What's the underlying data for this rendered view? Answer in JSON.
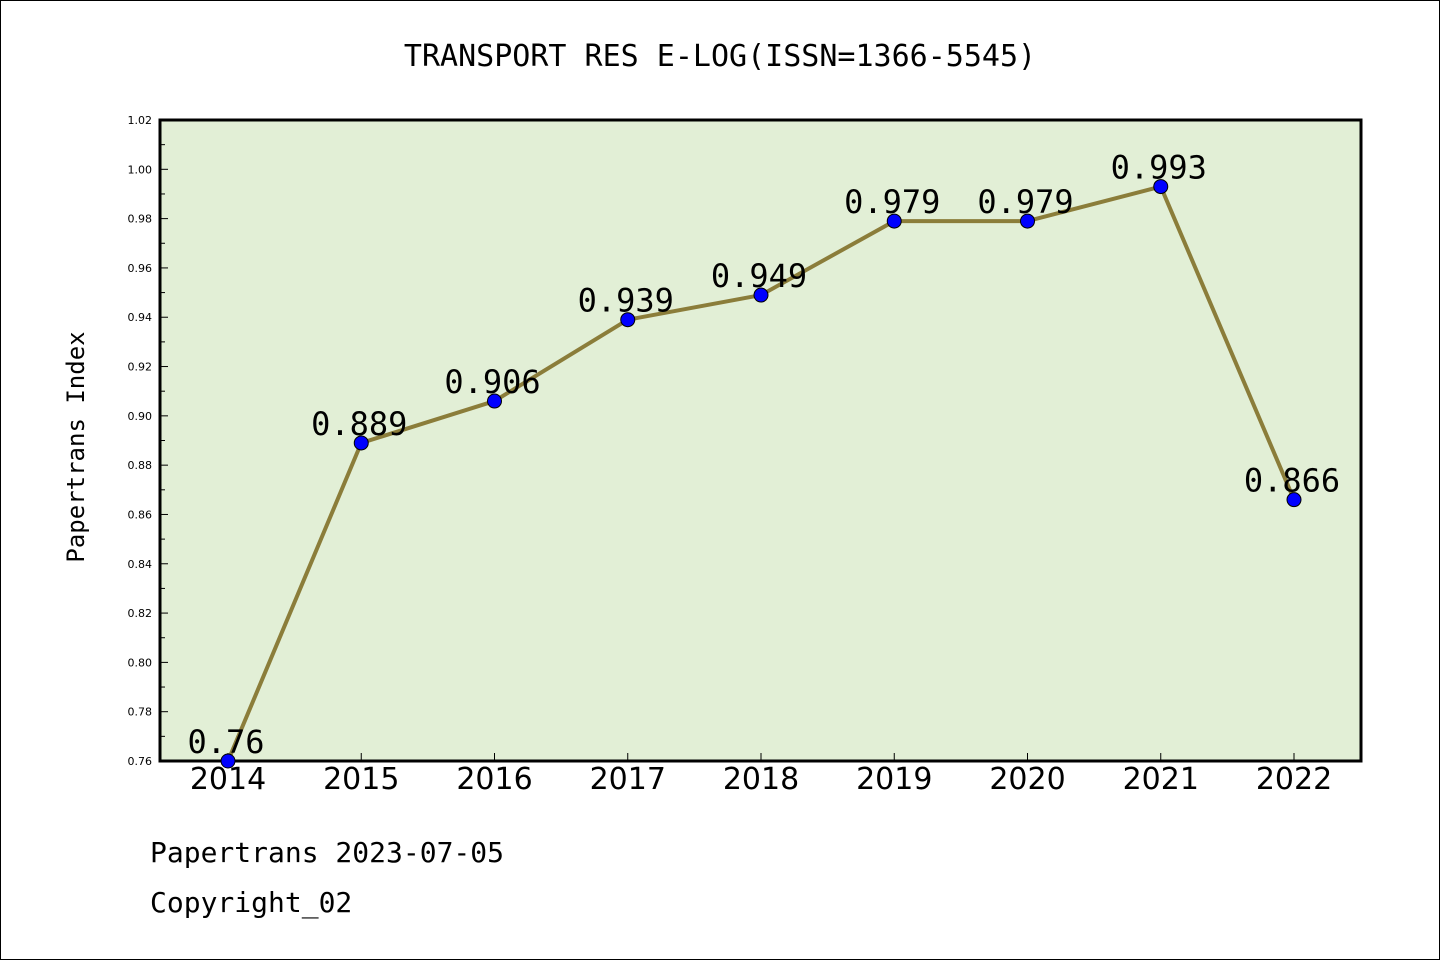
{
  "chart_data": {
    "type": "line",
    "title": "TRANSPORT RES E-LOG(ISSN=1366-5545)",
    "xlabel": "",
    "ylabel": "Papertrans Index",
    "categories": [
      "2014",
      "2015",
      "2016",
      "2017",
      "2018",
      "2019",
      "2020",
      "2021",
      "2022"
    ],
    "values": [
      0.76,
      0.889,
      0.906,
      0.939,
      0.949,
      0.979,
      0.979,
      0.993,
      0.866
    ],
    "data_labels": [
      "0.76",
      "0.889",
      "0.906",
      "0.939",
      "0.949",
      "0.979",
      "0.979",
      "0.993",
      "0.866"
    ],
    "ylim": [
      0.76,
      1.02
    ],
    "yticks": [
      "0.76",
      "0.78",
      "0.80",
      "0.82",
      "0.84",
      "0.86",
      "0.88",
      "0.90",
      "0.92",
      "0.94",
      "0.96",
      "0.98",
      "1.00",
      "1.02"
    ],
    "grid": false,
    "legend": "none",
    "colors": {
      "plot_background": "#e2efd6",
      "line": "#8b7d3a",
      "marker": "#0000ff"
    }
  },
  "footer": {
    "line1": "Papertrans 2023-07-05",
    "line2": "Copyright_02"
  }
}
